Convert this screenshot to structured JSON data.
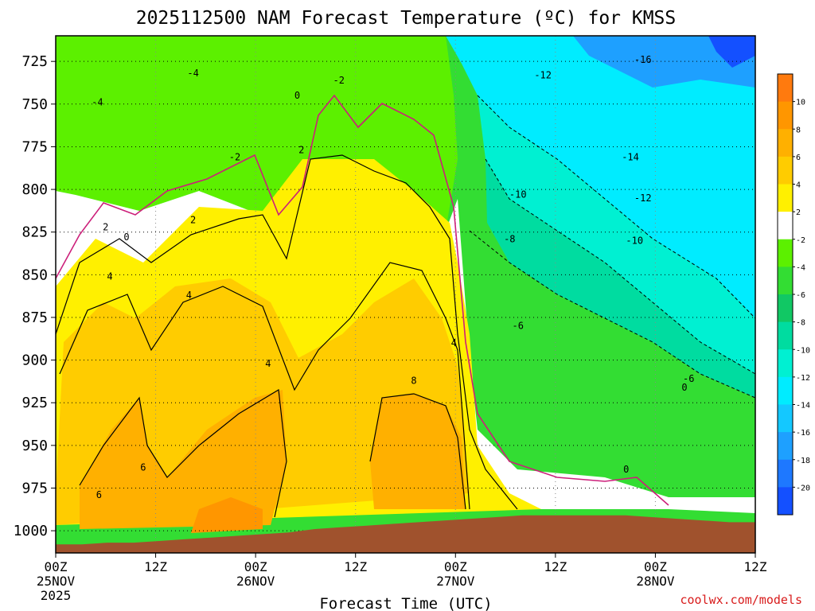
{
  "chart_data": {
    "type": "contour",
    "title": "2025112500 NAM Forecast Temperature (ºC) for KMSS",
    "xlabel": "Forecast Time (UTC)",
    "credit": "coolwx.com/models",
    "y_axis": {
      "reversed": true,
      "ylim": [
        1013,
        710
      ],
      "ticks": [
        725,
        750,
        775,
        800,
        825,
        850,
        875,
        900,
        925,
        950,
        975,
        1000
      ]
    },
    "x_axis": {
      "xlim": [
        0,
        84
      ],
      "ticks": [
        {
          "hour": 0,
          "label": "00Z",
          "date": "25NOV",
          "year": "2025"
        },
        {
          "hour": 12,
          "label": "12Z",
          "date": "",
          "year": ""
        },
        {
          "hour": 24,
          "label": "00Z",
          "date": "26NOV",
          "year": ""
        },
        {
          "hour": 36,
          "label": "12Z",
          "date": "",
          "year": ""
        },
        {
          "hour": 48,
          "label": "00Z",
          "date": "27NOV",
          "year": ""
        },
        {
          "hour": 60,
          "label": "12Z",
          "date": "",
          "year": ""
        },
        {
          "hour": 72,
          "label": "00Z",
          "date": "28NOV",
          "year": ""
        },
        {
          "hour": 84,
          "label": "12Z",
          "date": "",
          "year": ""
        }
      ]
    },
    "colorbar": {
      "labels": [
        "10",
        "8",
        "6",
        "4",
        "2",
        "-2",
        "-4",
        "-6",
        "-8",
        "-10",
        "-12",
        "-14",
        "-16",
        "-18",
        "-20"
      ],
      "colors": [
        "#ff7a0e",
        "#ff9600",
        "#ffb000",
        "#ffcc00",
        "#fff000",
        "#ffffff",
        "#5cf000",
        "#33dd33",
        "#11c864",
        "#00dca0",
        "#00f0d2",
        "#00ecff",
        "#14c8ff",
        "#1ea0ff",
        "#1e78ff",
        "#1450ff"
      ]
    },
    "surface_pressure": [
      1008,
      1008,
      1007,
      1007,
      1006,
      1005,
      1004,
      1003,
      1002,
      1001,
      999,
      998,
      997,
      996,
      995,
      994,
      993,
      992,
      991,
      991,
      991,
      991,
      991,
      992,
      993,
      994,
      995,
      995
    ],
    "contour_labels": [
      {
        "text": "-4",
        "t": 16.5,
        "p": 732
      },
      {
        "text": "-4",
        "t": 5.0,
        "p": 749
      },
      {
        "text": "-2",
        "t": 34.0,
        "p": 736
      },
      {
        "text": "-2",
        "t": 21.5,
        "p": 781
      },
      {
        "text": "0",
        "t": 29.0,
        "p": 745
      },
      {
        "text": "2",
        "t": 29.5,
        "p": 777
      },
      {
        "text": "2",
        "t": 16.5,
        "p": 818
      },
      {
        "text": "2",
        "t": 6.0,
        "p": 822
      },
      {
        "text": "0",
        "t": 8.5,
        "p": 828
      },
      {
        "text": "4",
        "t": 6.5,
        "p": 851
      },
      {
        "text": "4",
        "t": 16.0,
        "p": 862
      },
      {
        "text": "4",
        "t": 25.5,
        "p": 902
      },
      {
        "text": "4",
        "t": 47.8,
        "p": 890
      },
      {
        "text": "6",
        "t": 10.5,
        "p": 963
      },
      {
        "text": "6",
        "t": 5.2,
        "p": 979
      },
      {
        "text": "8",
        "t": 43.0,
        "p": 912
      },
      {
        "text": "0",
        "t": 68.5,
        "p": 964
      },
      {
        "text": "-12",
        "t": 58.5,
        "p": 733
      },
      {
        "text": "-16",
        "t": 70.5,
        "p": 724
      },
      {
        "text": "-14",
        "t": 69.0,
        "p": 781
      },
      {
        "text": "-12",
        "t": 70.5,
        "p": 805
      },
      {
        "text": "-10",
        "t": 55.5,
        "p": 803
      },
      {
        "text": "-10",
        "t": 69.5,
        "p": 830
      },
      {
        "text": "-8",
        "t": 54.5,
        "p": 829
      },
      {
        "text": "-6",
        "t": 55.5,
        "p": 880
      },
      {
        "text": "-6",
        "t": 76.0,
        "p": 911
      },
      {
        "text": "0",
        "t": 75.5,
        "p": 916
      }
    ]
  }
}
